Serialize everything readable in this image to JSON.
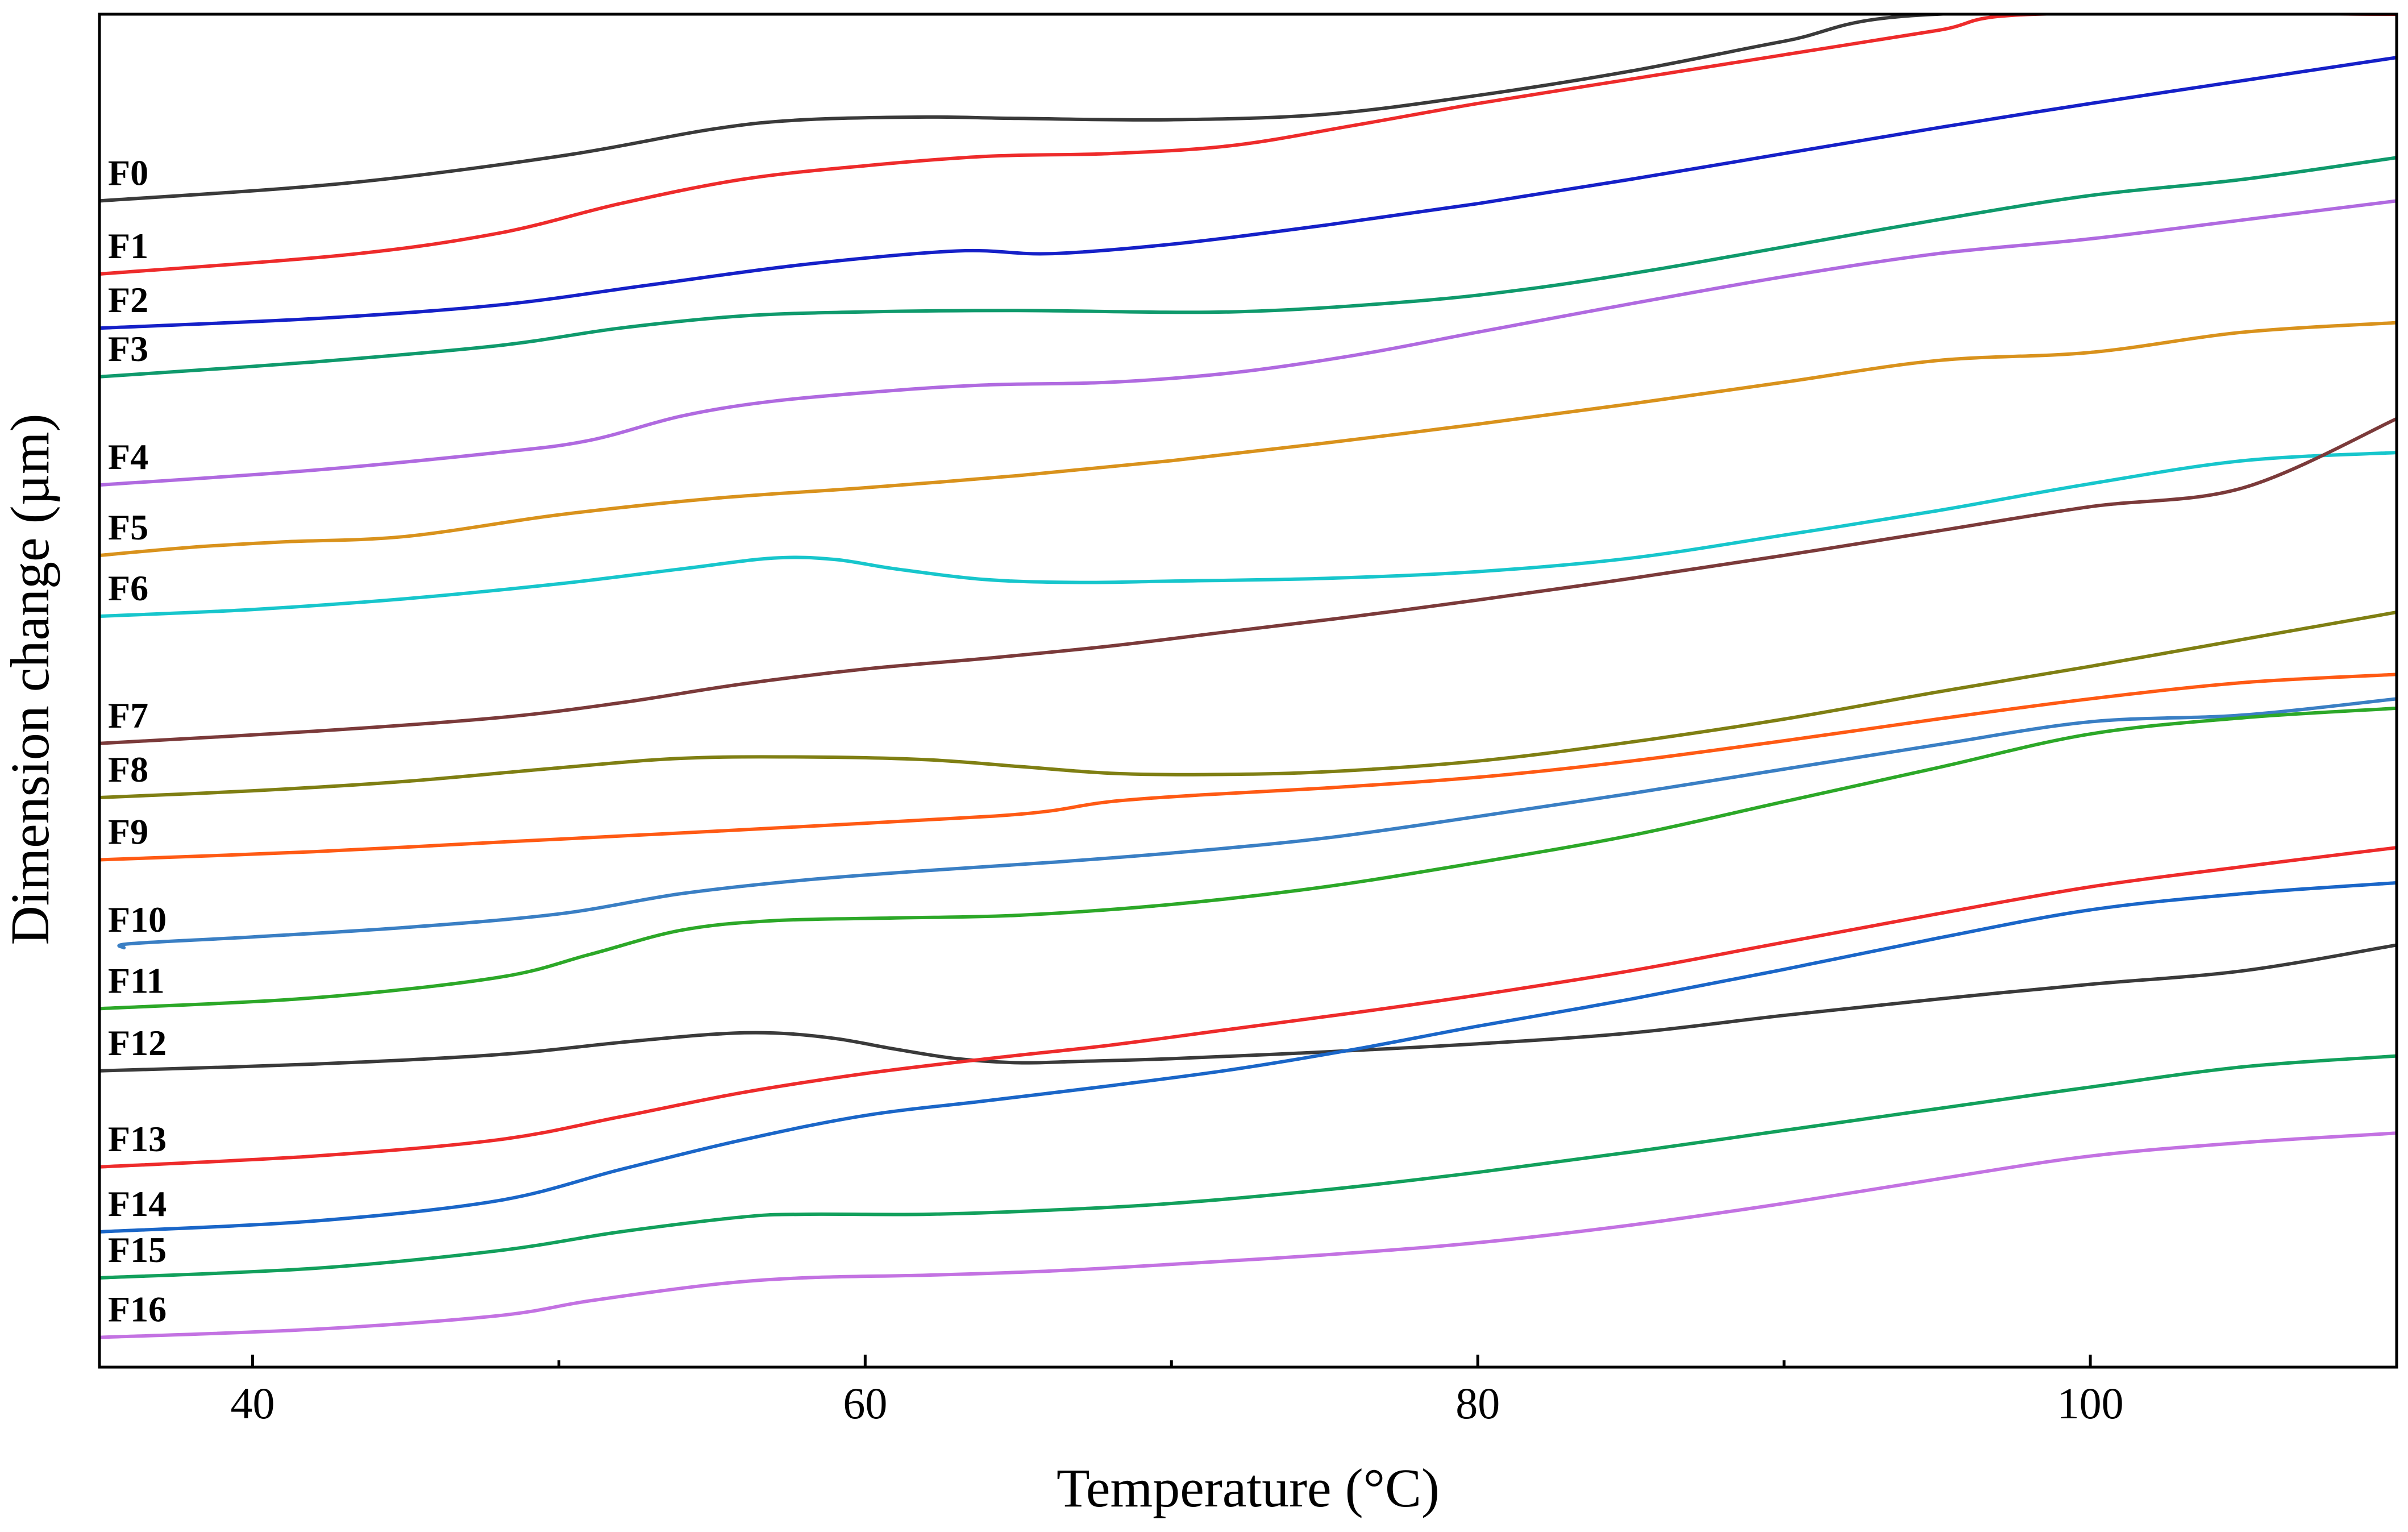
{
  "chart_data": {
    "type": "line",
    "title": "",
    "xlabel": "Temperature (°C)",
    "ylabel": "Dimension change (µm)",
    "xlim": [
      35,
      110
    ],
    "ylim": [
      0,
      100
    ],
    "x_ticks": [
      40,
      60,
      80,
      100
    ],
    "x_tick_labels": [
      "40",
      "60",
      "80",
      "100"
    ],
    "y_ticks_shown": false,
    "grid": false,
    "legend": "inline labels at left of each curve",
    "series": [
      {
        "name": "F0",
        "color": "#3a3a3a",
        "points": [
          [
            35,
            86.2
          ],
          [
            43,
            87.5
          ],
          [
            50,
            89.5
          ],
          [
            55,
            91.5
          ],
          [
            58,
            92.2
          ],
          [
            62,
            92.4
          ],
          [
            65,
            92.3
          ],
          [
            70,
            92.2
          ],
          [
            75,
            92.6
          ],
          [
            80,
            94.0
          ],
          [
            85,
            95.8
          ],
          [
            90,
            98.0
          ],
          [
            95,
            100
          ],
          [
            110,
            100
          ]
        ]
      },
      {
        "name": "F1",
        "color": "#ee2b2b",
        "points": [
          [
            35,
            80.8
          ],
          [
            43,
            82.2
          ],
          [
            48,
            83.8
          ],
          [
            52,
            86.0
          ],
          [
            56,
            87.8
          ],
          [
            60,
            88.8
          ],
          [
            64,
            89.5
          ],
          [
            68,
            89.7
          ],
          [
            72,
            90.3
          ],
          [
            76,
            91.8
          ],
          [
            80,
            93.4
          ],
          [
            85,
            95.2
          ],
          [
            90,
            97.0
          ],
          [
            95,
            98.8
          ],
          [
            98.2,
            100
          ],
          [
            110,
            100
          ]
        ]
      },
      {
        "name": "F2",
        "color": "#1520c8",
        "points": [
          [
            35,
            76.8
          ],
          [
            42,
            77.5
          ],
          [
            48,
            78.5
          ],
          [
            53,
            80.0
          ],
          [
            58,
            81.5
          ],
          [
            63,
            82.5
          ],
          [
            66,
            82.3
          ],
          [
            70,
            83.0
          ],
          [
            75,
            84.4
          ],
          [
            80,
            86.0
          ],
          [
            85,
            87.8
          ],
          [
            90,
            89.7
          ],
          [
            95,
            91.6
          ],
          [
            100,
            93.4
          ],
          [
            105,
            95.1
          ],
          [
            110,
            96.8
          ]
        ]
      },
      {
        "name": "F3",
        "color": "#0f9a6c",
        "points": [
          [
            35,
            73.2
          ],
          [
            42,
            74.3
          ],
          [
            48,
            75.5
          ],
          [
            52,
            76.8
          ],
          [
            56,
            77.7
          ],
          [
            60,
            78.0
          ],
          [
            65,
            78.1
          ],
          [
            72,
            78.0
          ],
          [
            78,
            78.8
          ],
          [
            82,
            79.8
          ],
          [
            86,
            81.2
          ],
          [
            90,
            82.8
          ],
          [
            95,
            84.8
          ],
          [
            100,
            86.6
          ],
          [
            105,
            87.8
          ],
          [
            110,
            89.4
          ]
        ]
      },
      {
        "name": "F4",
        "color": "#b06ae0",
        "points": [
          [
            35,
            65.2
          ],
          [
            42,
            66.3
          ],
          [
            48,
            67.6
          ],
          [
            51,
            68.5
          ],
          [
            54,
            70.3
          ],
          [
            57,
            71.4
          ],
          [
            61,
            72.2
          ],
          [
            64,
            72.6
          ],
          [
            68,
            72.8
          ],
          [
            72,
            73.5
          ],
          [
            76,
            74.8
          ],
          [
            80,
            76.5
          ],
          [
            85,
            78.6
          ],
          [
            90,
            80.6
          ],
          [
            95,
            82.3
          ],
          [
            100,
            83.4
          ],
          [
            105,
            84.8
          ],
          [
            110,
            86.2
          ]
        ]
      },
      {
        "name": "F5",
        "color": "#d9921c",
        "points": [
          [
            35,
            60.0
          ],
          [
            38,
            60.6
          ],
          [
            41,
            61.0
          ],
          [
            45,
            61.4
          ],
          [
            50,
            63.0
          ],
          [
            55,
            64.2
          ],
          [
            60,
            65.0
          ],
          [
            65,
            65.9
          ],
          [
            70,
            67.0
          ],
          [
            75,
            68.3
          ],
          [
            80,
            69.7
          ],
          [
            85,
            71.2
          ],
          [
            90,
            72.8
          ],
          [
            95,
            74.4
          ],
          [
            100,
            75.0
          ],
          [
            105,
            76.5
          ],
          [
            110,
            77.2
          ]
        ]
      },
      {
        "name": "F6",
        "color": "#17c6cc",
        "points": [
          [
            35,
            55.5
          ],
          [
            40,
            56.0
          ],
          [
            45,
            56.8
          ],
          [
            50,
            57.9
          ],
          [
            54,
            59.0
          ],
          [
            57,
            59.8
          ],
          [
            59,
            59.7
          ],
          [
            61,
            59.0
          ],
          [
            64,
            58.2
          ],
          [
            67,
            58.0
          ],
          [
            70,
            58.1
          ],
          [
            75,
            58.3
          ],
          [
            80,
            58.8
          ],
          [
            85,
            59.8
          ],
          [
            90,
            61.5
          ],
          [
            95,
            63.3
          ],
          [
            100,
            65.3
          ],
          [
            105,
            67.0
          ],
          [
            110,
            67.6
          ]
        ]
      },
      {
        "name": "F7",
        "color": "#7b3a3a",
        "points": [
          [
            35,
            46.1
          ],
          [
            42,
            47.0
          ],
          [
            48,
            48.0
          ],
          [
            52,
            49.1
          ],
          [
            56,
            50.5
          ],
          [
            60,
            51.6
          ],
          [
            64,
            52.4
          ],
          [
            68,
            53.3
          ],
          [
            72,
            54.4
          ],
          [
            76,
            55.5
          ],
          [
            80,
            56.7
          ],
          [
            85,
            58.3
          ],
          [
            90,
            60.0
          ],
          [
            95,
            61.8
          ],
          [
            100,
            63.6
          ],
          [
            105,
            65.0
          ],
          [
            110,
            70.1
          ]
        ]
      },
      {
        "name": "F8",
        "color": "#7f7f13",
        "points": [
          [
            35,
            42.1
          ],
          [
            40,
            42.6
          ],
          [
            45,
            43.3
          ],
          [
            50,
            44.3
          ],
          [
            54,
            45.0
          ],
          [
            58,
            45.1
          ],
          [
            62,
            44.9
          ],
          [
            65,
            44.4
          ],
          [
            68,
            43.9
          ],
          [
            71,
            43.8
          ],
          [
            75,
            44.0
          ],
          [
            80,
            44.8
          ],
          [
            85,
            46.2
          ],
          [
            90,
            47.9
          ],
          [
            95,
            49.9
          ],
          [
            100,
            51.8
          ],
          [
            105,
            53.8
          ],
          [
            110,
            55.8
          ]
        ]
      },
      {
        "name": "F9",
        "color": "#ff5a14",
        "points": [
          [
            35,
            37.5
          ],
          [
            42,
            38.1
          ],
          [
            48,
            38.8
          ],
          [
            55,
            39.6
          ],
          [
            60,
            40.2
          ],
          [
            64,
            40.7
          ],
          [
            66,
            41.1
          ],
          [
            68,
            41.8
          ],
          [
            71,
            42.3
          ],
          [
            75,
            42.8
          ],
          [
            80,
            43.6
          ],
          [
            85,
            44.8
          ],
          [
            90,
            46.3
          ],
          [
            95,
            47.9
          ],
          [
            100,
            49.4
          ],
          [
            105,
            50.6
          ],
          [
            110,
            51.2
          ]
        ]
      },
      {
        "name": "F10",
        "color": "#3a7fc4",
        "points": [
          [
            35.8,
            31.0
          ],
          [
            36,
            31.3
          ],
          [
            40,
            31.8
          ],
          [
            45,
            32.5
          ],
          [
            50,
            33.5
          ],
          [
            54,
            35.0
          ],
          [
            58,
            36.0
          ],
          [
            62,
            36.7
          ],
          [
            66,
            37.3
          ],
          [
            70,
            38.0
          ],
          [
            75,
            39.1
          ],
          [
            80,
            40.7
          ],
          [
            85,
            42.4
          ],
          [
            90,
            44.2
          ],
          [
            95,
            46.0
          ],
          [
            100,
            47.7
          ],
          [
            105,
            48.2
          ],
          [
            110,
            49.4
          ]
        ]
      },
      {
        "name": "F11",
        "color": "#2ca828",
        "points": [
          [
            35,
            26.5
          ],
          [
            42,
            27.3
          ],
          [
            48,
            28.8
          ],
          [
            51,
            30.5
          ],
          [
            54,
            32.3
          ],
          [
            57,
            33.0
          ],
          [
            61,
            33.2
          ],
          [
            65,
            33.4
          ],
          [
            70,
            34.2
          ],
          [
            75,
            35.5
          ],
          [
            80,
            37.3
          ],
          [
            85,
            39.3
          ],
          [
            90,
            41.8
          ],
          [
            95,
            44.3
          ],
          [
            100,
            46.8
          ],
          [
            105,
            48.0
          ],
          [
            110,
            48.7
          ]
        ]
      },
      {
        "name": "F12",
        "color": "#3a3a3a",
        "points": [
          [
            35,
            21.9
          ],
          [
            42,
            22.4
          ],
          [
            48,
            23.1
          ],
          [
            52,
            24.0
          ],
          [
            55,
            24.6
          ],
          [
            57,
            24.7
          ],
          [
            59,
            24.3
          ],
          [
            61,
            23.5
          ],
          [
            63,
            22.8
          ],
          [
            65,
            22.5
          ],
          [
            67,
            22.6
          ],
          [
            70,
            22.8
          ],
          [
            75,
            23.3
          ],
          [
            80,
            23.9
          ],
          [
            85,
            24.7
          ],
          [
            90,
            26.0
          ],
          [
            95,
            27.2
          ],
          [
            100,
            28.3
          ],
          [
            105,
            29.3
          ],
          [
            110,
            31.2
          ]
        ]
      },
      {
        "name": "F13",
        "color": "#ee2b2b",
        "points": [
          [
            35,
            14.8
          ],
          [
            42,
            15.6
          ],
          [
            48,
            16.8
          ],
          [
            52,
            18.5
          ],
          [
            56,
            20.3
          ],
          [
            60,
            21.7
          ],
          [
            64,
            22.8
          ],
          [
            68,
            23.8
          ],
          [
            72,
            25.0
          ],
          [
            76,
            26.2
          ],
          [
            80,
            27.5
          ],
          [
            85,
            29.3
          ],
          [
            90,
            31.4
          ],
          [
            95,
            33.5
          ],
          [
            100,
            35.5
          ],
          [
            105,
            37.0
          ],
          [
            110,
            38.4
          ]
        ]
      },
      {
        "name": "F14",
        "color": "#1a66c8",
        "points": [
          [
            35,
            10.0
          ],
          [
            42,
            10.8
          ],
          [
            48,
            12.3
          ],
          [
            52,
            14.6
          ],
          [
            56,
            16.8
          ],
          [
            60,
            18.6
          ],
          [
            64,
            19.7
          ],
          [
            68,
            20.8
          ],
          [
            72,
            22.0
          ],
          [
            76,
            23.5
          ],
          [
            80,
            25.2
          ],
          [
            85,
            27.2
          ],
          [
            90,
            29.4
          ],
          [
            95,
            31.7
          ],
          [
            100,
            33.8
          ],
          [
            105,
            35.0
          ],
          [
            110,
            35.8
          ]
        ]
      },
      {
        "name": "F15",
        "color": "#12a05c",
        "points": [
          [
            35,
            6.6
          ],
          [
            42,
            7.3
          ],
          [
            48,
            8.6
          ],
          [
            52,
            10.0
          ],
          [
            56,
            11.1
          ],
          [
            58,
            11.3
          ],
          [
            62,
            11.3
          ],
          [
            66,
            11.6
          ],
          [
            70,
            12.1
          ],
          [
            75,
            13.1
          ],
          [
            80,
            14.4
          ],
          [
            85,
            15.9
          ],
          [
            90,
            17.5
          ],
          [
            95,
            19.1
          ],
          [
            100,
            20.7
          ],
          [
            105,
            22.2
          ],
          [
            110,
            23.0
          ]
        ]
      },
      {
        "name": "F16",
        "color": "#c372e2",
        "points": [
          [
            35,
            2.2
          ],
          [
            42,
            2.8
          ],
          [
            48,
            3.8
          ],
          [
            51,
            4.9
          ],
          [
            55,
            6.1
          ],
          [
            58,
            6.6
          ],
          [
            62,
            6.8
          ],
          [
            66,
            7.1
          ],
          [
            70,
            7.6
          ],
          [
            75,
            8.3
          ],
          [
            80,
            9.2
          ],
          [
            85,
            10.5
          ],
          [
            90,
            12.1
          ],
          [
            95,
            13.9
          ],
          [
            100,
            15.6
          ],
          [
            105,
            16.6
          ],
          [
            110,
            17.3
          ]
        ]
      }
    ]
  }
}
